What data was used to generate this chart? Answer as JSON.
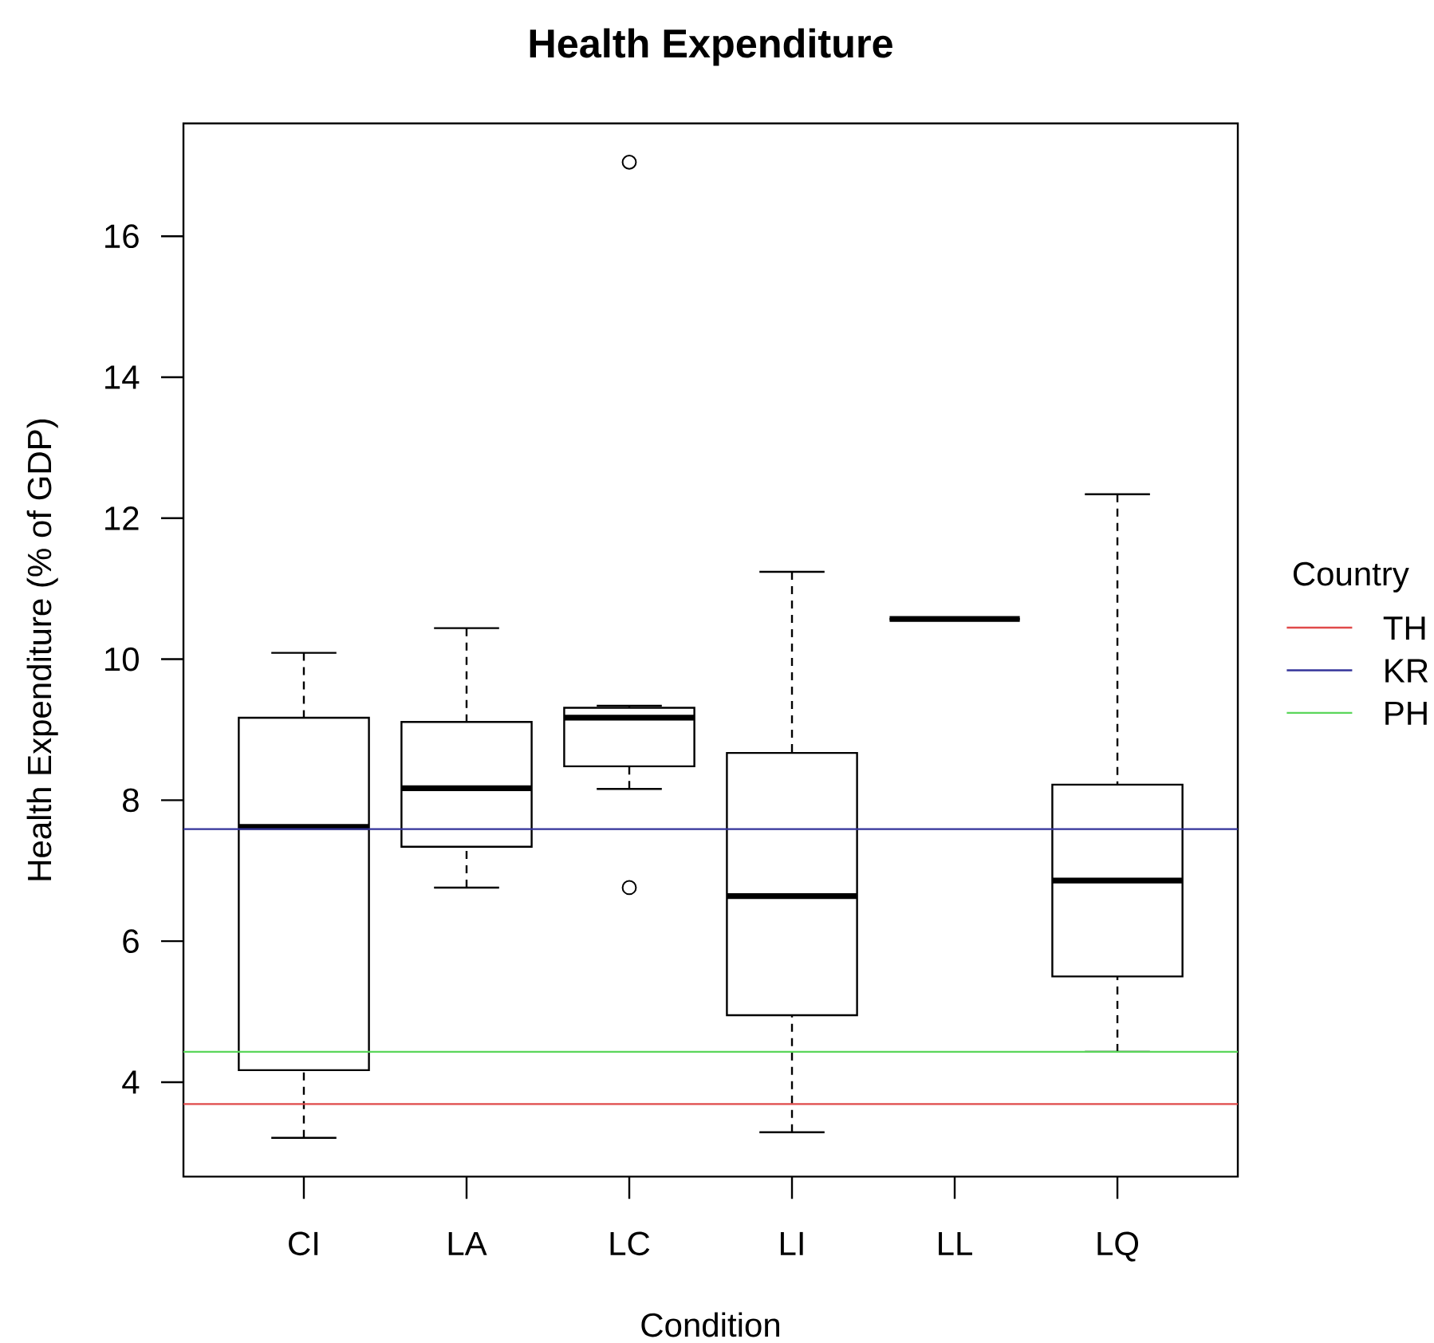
{
  "chart_data": {
    "type": "box",
    "title": "Health Expenditure",
    "xlabel": "Condition",
    "ylabel": "Health Expenditure (% of GDP)",
    "legend_title": "Country",
    "categories": [
      "CI",
      "LA",
      "LC",
      "LI",
      "LL",
      "LQ"
    ],
    "boxes": [
      {
        "low": 3.21,
        "q1": 4.17,
        "median": 7.62,
        "q3": 9.17,
        "high": 10.09
      },
      {
        "low": 6.76,
        "q1": 7.34,
        "median": 8.17,
        "q3": 9.11,
        "high": 10.44
      },
      {
        "low": 8.16,
        "q1": 8.48,
        "median": 9.17,
        "q3": 9.31,
        "high": 9.34,
        "outliers": [
          6.76,
          17.05
        ]
      },
      {
        "low": 3.29,
        "q1": 4.95,
        "median": 6.64,
        "q3": 8.67,
        "high": 11.24
      },
      {
        "low": 10.57,
        "q1": 10.57,
        "median": 10.57,
        "q3": 10.57,
        "high": 10.57
      },
      {
        "low": 4.43,
        "q1": 5.5,
        "median": 6.86,
        "q3": 8.22,
        "high": 12.34
      }
    ],
    "ylim": [
      2.66,
      17.6
    ],
    "yticks": [
      4,
      6,
      8,
      10,
      12,
      14,
      16
    ],
    "ref_lines": [
      {
        "axis": "y",
        "value": 3.69,
        "label": "TH",
        "color": "#e04a4a"
      },
      {
        "axis": "y",
        "value": 7.59,
        "label": "KR",
        "color": "#33339a"
      },
      {
        "axis": "y",
        "value": 4.43,
        "label": "PH",
        "color": "#5ad65a"
      }
    ],
    "legend": "right",
    "grid": false
  }
}
